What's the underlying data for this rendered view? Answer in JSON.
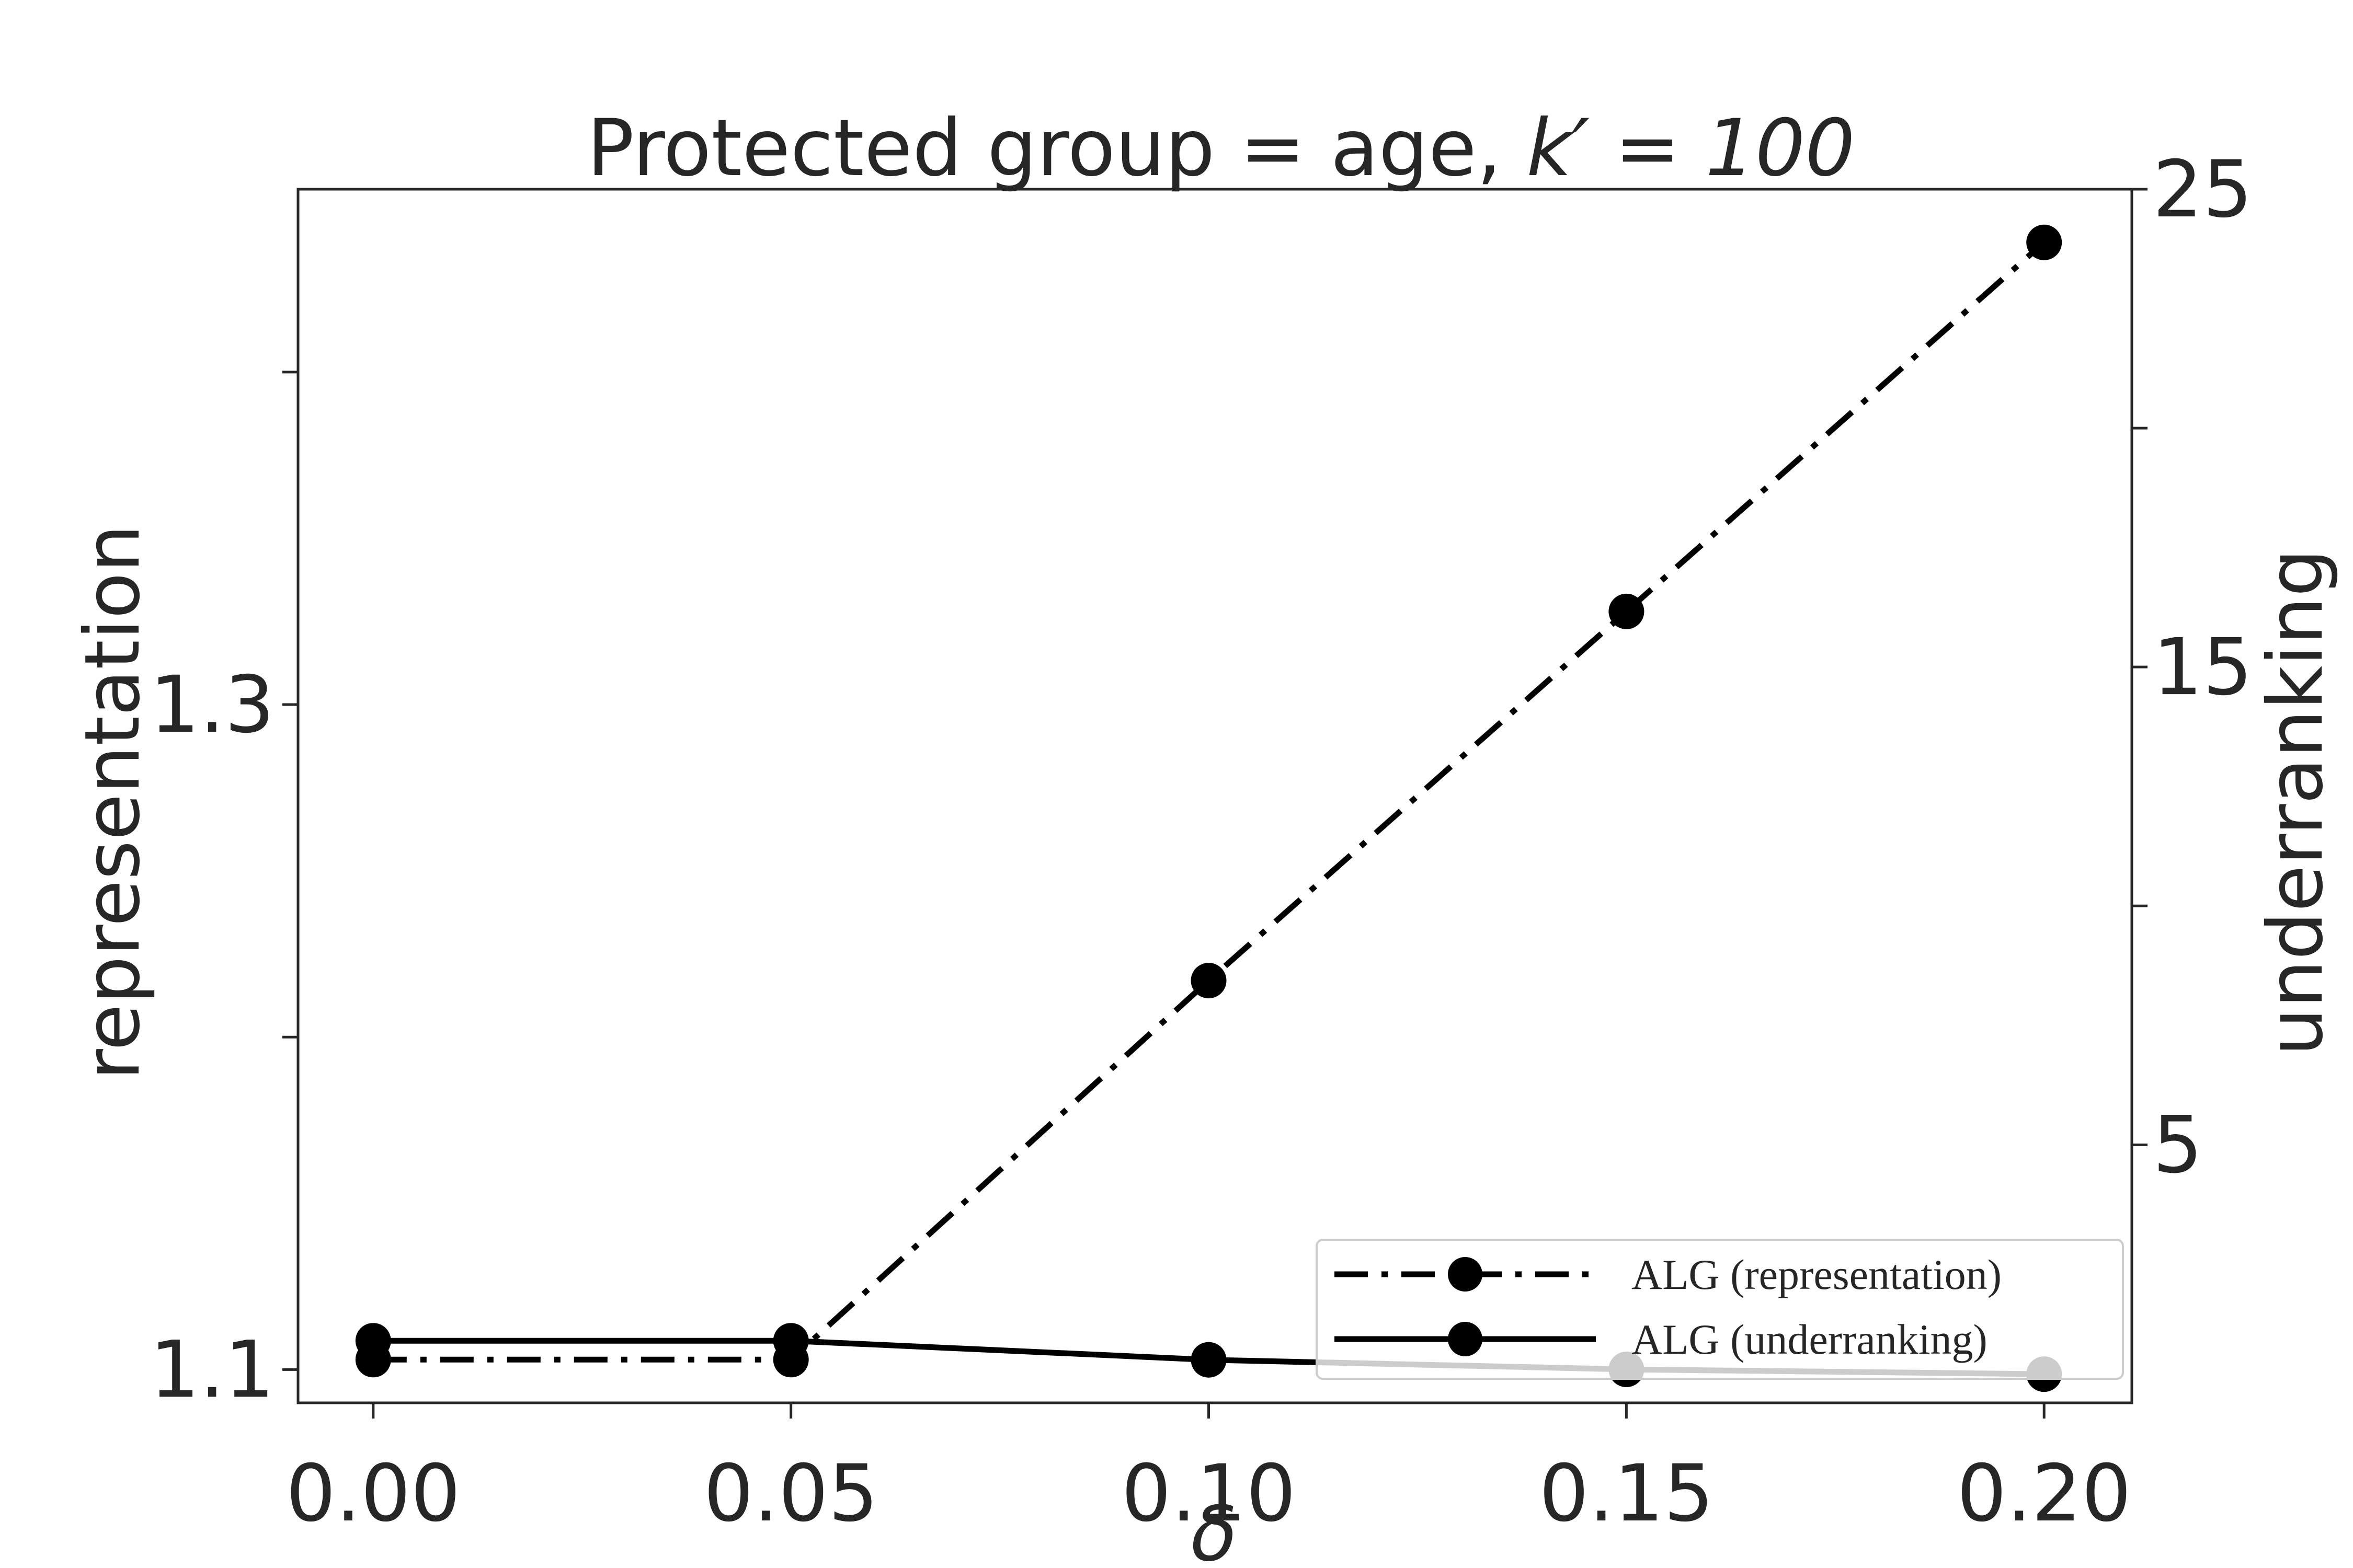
{
  "chart_data": {
    "type": "line",
    "title_main": "Protected group = age, ",
    "title_math": "k′ = 100",
    "xlabel": "δ",
    "ylabel_left": "representation",
    "ylabel_right": "underranking",
    "x": [
      0.0,
      0.05,
      0.1,
      0.15,
      0.2
    ],
    "xlim": [
      -0.009,
      0.2105
    ],
    "ylim_left": [
      1.09,
      1.455
    ],
    "ylim_right": [
      -0.4,
      25.0
    ],
    "x_ticks": [
      {
        "value": 0.0,
        "label": "0.00"
      },
      {
        "value": 0.05,
        "label": "0.05"
      },
      {
        "value": 0.1,
        "label": "0.10"
      },
      {
        "value": 0.15,
        "label": "0.15"
      },
      {
        "value": 0.2,
        "label": "0.20"
      }
    ],
    "y_left_ticks": [
      {
        "value": 1.1,
        "label": "1.1"
      },
      {
        "value": 1.2,
        "label": ""
      },
      {
        "value": 1.3,
        "label": "1.3"
      },
      {
        "value": 1.4,
        "label": ""
      }
    ],
    "y_right_ticks": [
      {
        "value": 5,
        "label": "5"
      },
      {
        "value": 10,
        "label": ""
      },
      {
        "value": 15,
        "label": "15"
      },
      {
        "value": 20,
        "label": ""
      },
      {
        "value": 25,
        "label": "25"
      }
    ],
    "series": [
      {
        "name": "ALG (representation)",
        "axis": "left",
        "style": "dashdot",
        "color": "#000000",
        "values": [
          1.103,
          1.103,
          1.217,
          1.328,
          1.439
        ]
      },
      {
        "name": "ALG (underranking)",
        "axis": "right",
        "style": "solid",
        "color": "#000000",
        "values": [
          0.9,
          0.9,
          0.5,
          0.3,
          0.2
        ]
      }
    ],
    "legend_position": "lower-right",
    "grid": false
  }
}
